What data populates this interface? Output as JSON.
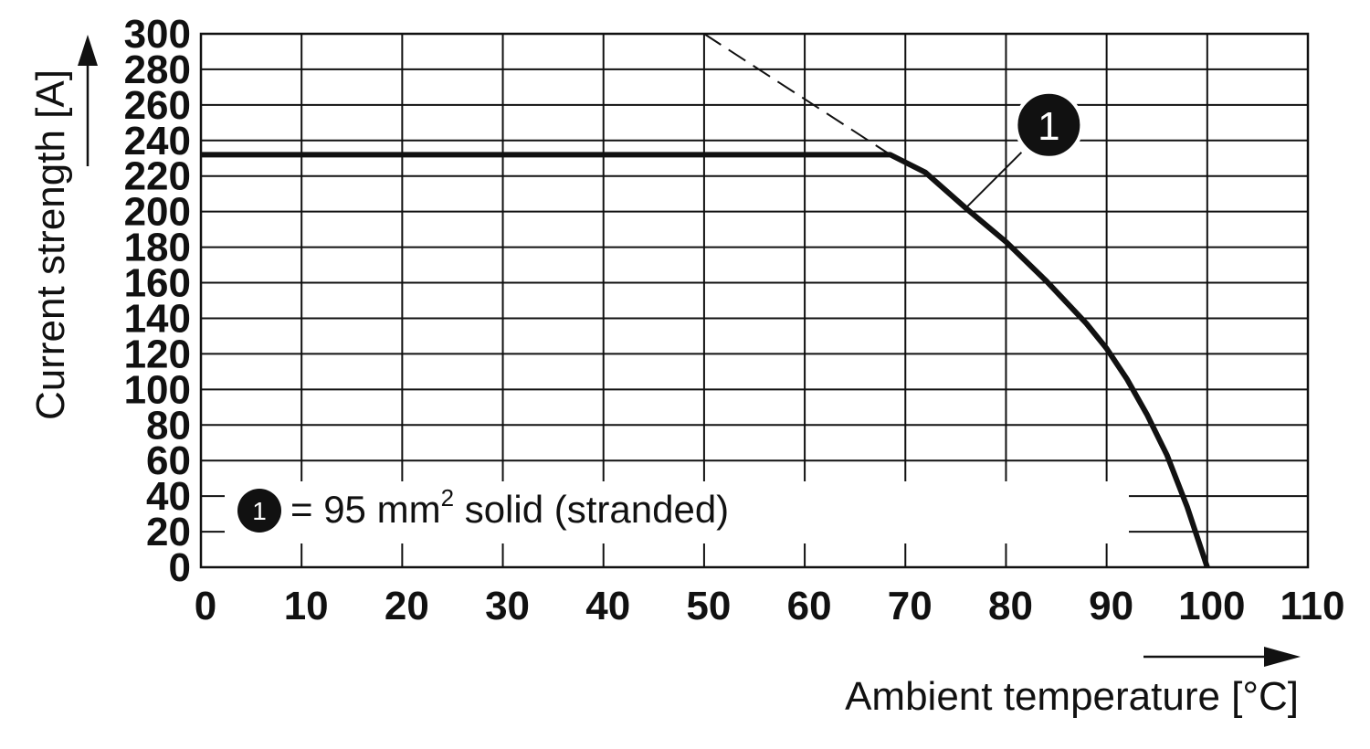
{
  "chart_data": {
    "type": "line",
    "xlabel": "Ambient temperature [°C]",
    "ylabel": "Current strength [A]",
    "xlim": [
      0,
      110
    ],
    "ylim": [
      0,
      300
    ],
    "x_ticks": [
      0,
      10,
      20,
      30,
      40,
      50,
      60,
      70,
      80,
      90,
      100,
      110
    ],
    "y_ticks": [
      0,
      20,
      40,
      60,
      80,
      100,
      120,
      140,
      160,
      180,
      200,
      220,
      240,
      260,
      280,
      300
    ],
    "grid": true,
    "series": [
      {
        "marker": "1",
        "style": "solid",
        "x": [
          0,
          68.5,
          72,
          76,
          80,
          84,
          88,
          90,
          92,
          94,
          96,
          98,
          99,
          100
        ],
        "y": [
          232,
          232,
          222,
          202,
          183,
          161,
          137,
          123,
          106,
          86,
          63,
          34,
          17,
          0
        ]
      },
      {
        "style": "dashed",
        "x": [
          50,
          68.5
        ],
        "y": [
          300,
          232
        ]
      }
    ],
    "annotation": {
      "label": "1"
    },
    "legend": {
      "marker": "1",
      "text_pre": "= 95 mm",
      "superscript": "2",
      "text_post": " solid (stranded)",
      "placement": "bottom-left"
    }
  }
}
